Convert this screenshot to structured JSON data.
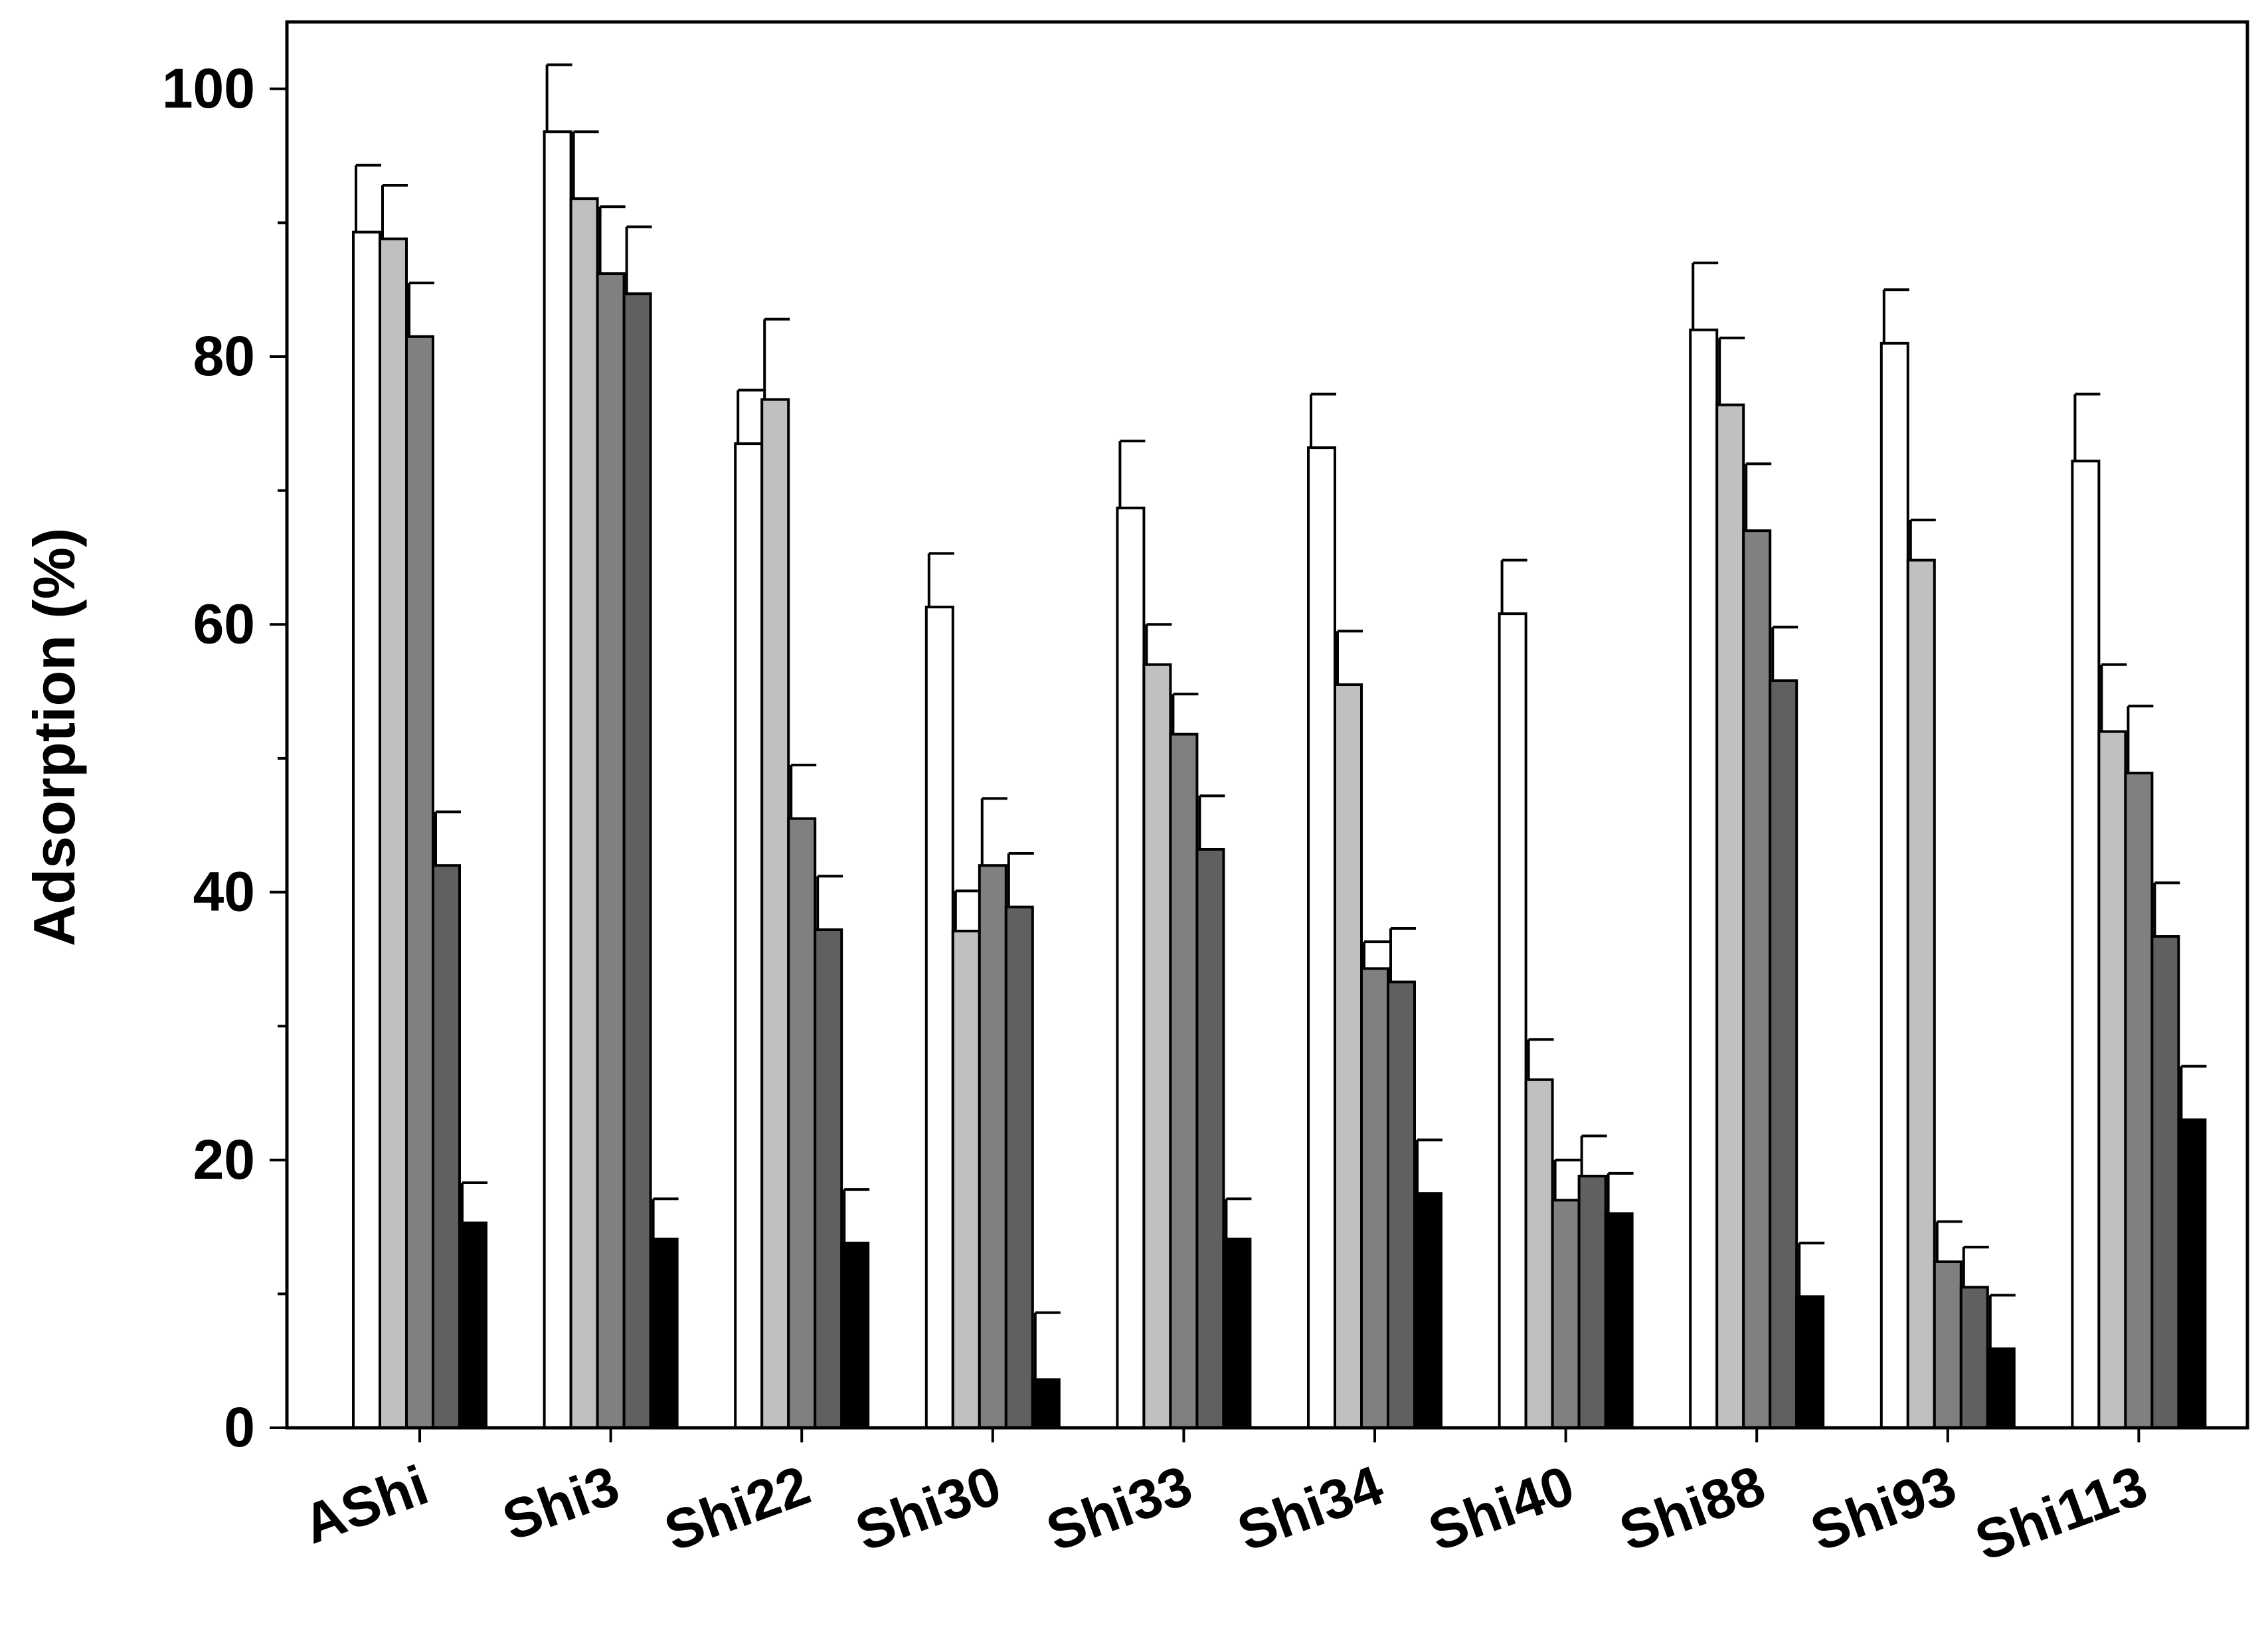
{
  "chart_data": {
    "type": "bar",
    "title": "",
    "xlabel": "",
    "ylabel": "Adsorption (%)",
    "ylim": [
      0,
      105
    ],
    "yticks": [
      0,
      20,
      40,
      60,
      80,
      100
    ],
    "y_minor_step": 10,
    "grid": false,
    "legend": "none",
    "categories": [
      "AShi",
      "Shi3",
      "Shi22",
      "Shi30",
      "Shi33",
      "Shi34",
      "Shi40",
      "Shi88",
      "Shi93",
      "Shi113"
    ],
    "series": [
      {
        "color": "#ffffff",
        "values": [
          89.3,
          96.8,
          73.5,
          61.3,
          68.7,
          73.2,
          60.8,
          82.0,
          81.0,
          72.2
        ],
        "errors": [
          5.0,
          5.0,
          4.0,
          4.0,
          5.0,
          4.0,
          4.0,
          5.0,
          4.0,
          5.0
        ]
      },
      {
        "color": "#c0c0c0",
        "values": [
          88.8,
          91.8,
          76.8,
          37.1,
          57.0,
          55.5,
          26.0,
          76.4,
          64.8,
          52.0
        ],
        "errors": [
          4.0,
          5.0,
          6.0,
          3.0,
          3.0,
          4.0,
          3.0,
          5.0,
          3.0,
          5.0
        ]
      },
      {
        "color": "#808080",
        "values": [
          81.5,
          86.2,
          45.5,
          42.0,
          51.8,
          34.3,
          17.0,
          67.0,
          12.4,
          48.9
        ],
        "errors": [
          4.0,
          5.0,
          4.0,
          5.0,
          3.0,
          2.0,
          3.0,
          5.0,
          3.0,
          5.0
        ]
      },
      {
        "color": "#606060",
        "values": [
          42.0,
          84.7,
          37.2,
          38.9,
          43.2,
          33.3,
          18.8,
          55.8,
          10.5,
          36.7
        ],
        "errors": [
          4.0,
          5.0,
          4.0,
          4.0,
          4.0,
          4.0,
          3.0,
          4.0,
          3.0,
          4.0
        ]
      },
      {
        "color": "#000000",
        "values": [
          15.3,
          14.1,
          13.8,
          3.6,
          14.1,
          17.5,
          16.0,
          9.8,
          5.9,
          23.0
        ],
        "errors": [
          3.0,
          3.0,
          4.0,
          5.0,
          3.0,
          4.0,
          3.0,
          4.0,
          4.0,
          4.0
        ]
      }
    ]
  }
}
